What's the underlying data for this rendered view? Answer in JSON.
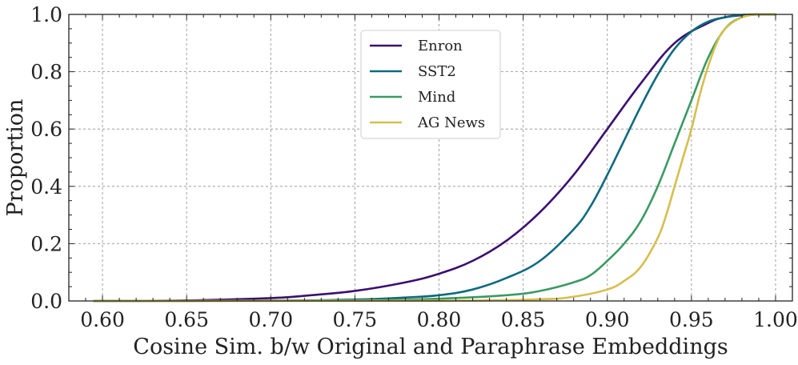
{
  "chart_data": {
    "type": "line",
    "title": "",
    "xlabel": "Cosine Sim. b/w Original and Paraphrase Embeddings",
    "ylabel": "Proportion",
    "xlim": [
      0.58,
      1.01
    ],
    "ylim": [
      0.0,
      1.0
    ],
    "grid": true,
    "legend_position": "top-center",
    "x_ticks": [
      0.6,
      0.65,
      0.7,
      0.75,
      0.8,
      0.85,
      0.9,
      0.95,
      1.0
    ],
    "x_tick_labels": [
      "0.60",
      "0.65",
      "0.70",
      "0.75",
      "0.80",
      "0.85",
      "0.90",
      "0.95",
      "1.00"
    ],
    "y_ticks": [
      0.0,
      0.2,
      0.4,
      0.6,
      0.8,
      1.0
    ],
    "y_tick_labels": [
      "0.0",
      "0.2",
      "0.4",
      "0.6",
      "0.8",
      "1.0"
    ],
    "series": [
      {
        "name": "Enron",
        "color": "#3b0f70",
        "x": [
          0.595,
          0.65,
          0.7,
          0.72,
          0.75,
          0.78,
          0.8,
          0.82,
          0.84,
          0.86,
          0.88,
          0.9,
          0.92,
          0.94,
          0.96,
          0.97,
          0.98,
          0.99,
          1.0
        ],
        "y": [
          0.0,
          0.002,
          0.01,
          0.018,
          0.035,
          0.065,
          0.095,
          0.14,
          0.21,
          0.31,
          0.44,
          0.6,
          0.76,
          0.9,
          0.97,
          0.99,
          0.997,
          1.0,
          1.0
        ]
      },
      {
        "name": "SST2",
        "color": "#0e6a80",
        "x": [
          0.595,
          0.7,
          0.75,
          0.78,
          0.8,
          0.82,
          0.84,
          0.86,
          0.88,
          0.89,
          0.9,
          0.91,
          0.92,
          0.93,
          0.94,
          0.95,
          0.96,
          0.97,
          0.98,
          0.99,
          1.0
        ],
        "y": [
          0.0,
          0.001,
          0.005,
          0.012,
          0.02,
          0.04,
          0.08,
          0.14,
          0.25,
          0.33,
          0.44,
          0.56,
          0.68,
          0.79,
          0.88,
          0.94,
          0.975,
          0.99,
          0.998,
          1.0,
          1.0
        ]
      },
      {
        "name": "Mind",
        "color": "#3a9a62",
        "x": [
          0.595,
          0.75,
          0.8,
          0.84,
          0.86,
          0.88,
          0.89,
          0.9,
          0.91,
          0.92,
          0.93,
          0.94,
          0.95,
          0.96,
          0.97,
          0.98,
          0.99,
          1.0
        ],
        "y": [
          0.0,
          0.002,
          0.008,
          0.02,
          0.035,
          0.065,
          0.09,
          0.14,
          0.2,
          0.28,
          0.4,
          0.55,
          0.7,
          0.85,
          0.95,
          0.99,
          1.0,
          1.0
        ]
      },
      {
        "name": "AG News",
        "color": "#d6be4e",
        "x": [
          0.595,
          0.8,
          0.86,
          0.88,
          0.9,
          0.91,
          0.92,
          0.93,
          0.935,
          0.94,
          0.945,
          0.95,
          0.955,
          0.96,
          0.965,
          0.97,
          0.98,
          0.99,
          1.0
        ],
        "y": [
          0.0,
          0.001,
          0.006,
          0.015,
          0.04,
          0.07,
          0.12,
          0.22,
          0.3,
          0.4,
          0.5,
          0.6,
          0.72,
          0.82,
          0.9,
          0.95,
          0.99,
          1.0,
          1.0
        ]
      }
    ]
  }
}
